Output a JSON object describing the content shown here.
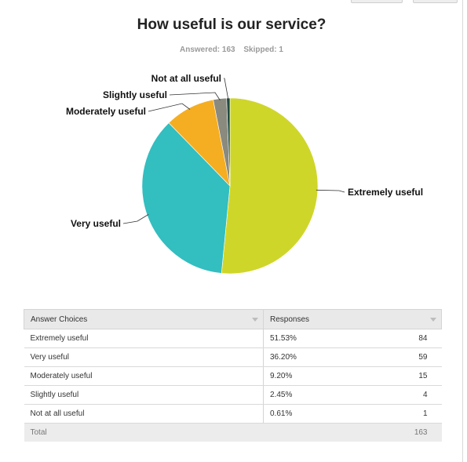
{
  "title": "How useful is our service?",
  "answered_label": "Answered: 163",
  "skipped_label": "Skipped: 1",
  "chart_data": {
    "type": "pie",
    "title": "How useful is our service?",
    "slices": [
      {
        "label": "Extremely useful",
        "value": 51.53,
        "color": "#cfd62a"
      },
      {
        "label": "Very useful",
        "value": 36.2,
        "color": "#33bec0"
      },
      {
        "label": "Moderately useful",
        "value": 9.2,
        "color": "#f5ae21"
      },
      {
        "label": "Slightly useful",
        "value": 2.45,
        "color": "#8a8a7e"
      },
      {
        "label": "Not at all useful",
        "value": 0.61,
        "color": "#1f4a44"
      }
    ]
  },
  "table": {
    "headers": [
      "Answer Choices",
      "Responses"
    ],
    "rows": [
      {
        "choice": "Extremely useful",
        "percent": "51.53%",
        "count": "84"
      },
      {
        "choice": "Very useful",
        "percent": "36.20%",
        "count": "59"
      },
      {
        "choice": "Moderately useful",
        "percent": "9.20%",
        "count": "15"
      },
      {
        "choice": "Slightly useful",
        "percent": "2.45%",
        "count": "4"
      },
      {
        "choice": "Not at all useful",
        "percent": "0.61%",
        "count": "1"
      }
    ],
    "total_label": "Total",
    "total_count": "163"
  }
}
